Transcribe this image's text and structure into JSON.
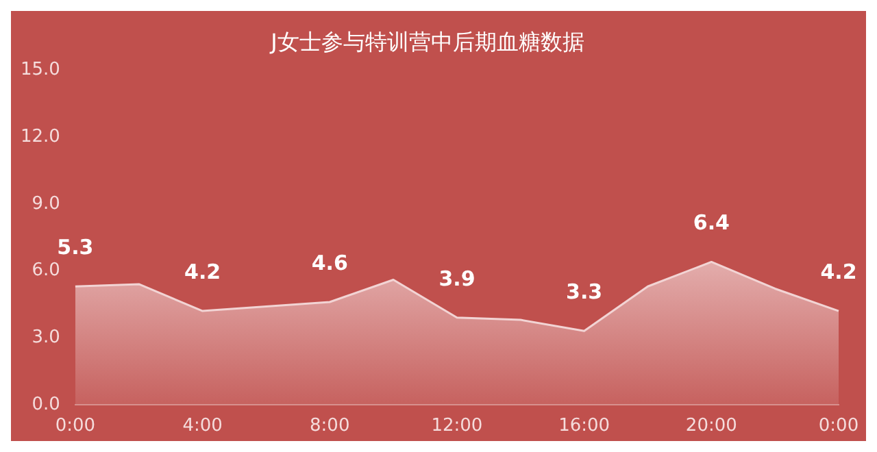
{
  "chart_data": {
    "type": "area",
    "title": "J女士参与特训营中后期血糖数据",
    "categories": [
      "0:00",
      null,
      "4:00",
      null,
      "8:00",
      null,
      "12:00",
      null,
      "16:00",
      null,
      "20:00",
      null,
      "0:00"
    ],
    "series": [
      {
        "color": "#f2d4d4",
        "values": [
          5.3,
          5.4,
          4.2,
          4.4,
          4.6,
          5.6,
          3.9,
          3.8,
          3.3,
          5.3,
          6.4,
          5.2,
          4.2
        ],
        "value_labels": [
          "5.3",
          null,
          "4.2",
          null,
          "4.6",
          null,
          "3.9",
          null,
          "3.3",
          null,
          "6.4",
          null,
          "4.2"
        ]
      }
    ],
    "ylim": [
      0,
      15
    ],
    "yticks": [
      {
        "value": 0,
        "label": "0.0"
      },
      {
        "value": 3,
        "label": "3.0"
      },
      {
        "value": 6,
        "label": "6.0"
      },
      {
        "value": 9,
        "label": "9.0"
      },
      {
        "value": 12,
        "label": "12.0"
      },
      {
        "value": 15,
        "label": "15.0"
      }
    ],
    "grid": false,
    "legend": false,
    "marker": "none"
  }
}
